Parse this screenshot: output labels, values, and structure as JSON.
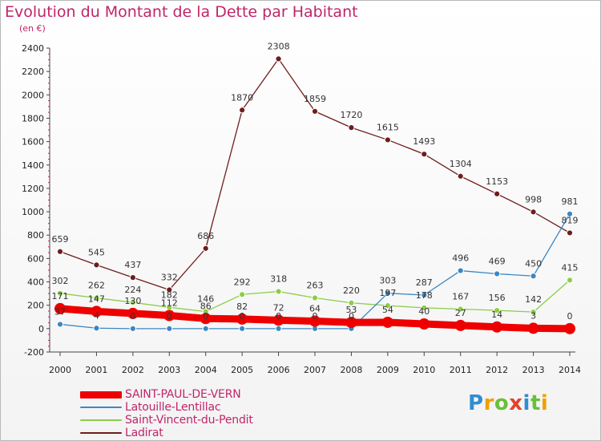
{
  "title": "Evolution du Montant de la Dette par Habitant",
  "subtitle": "(en €)",
  "logo": "Proxiti",
  "chart_data": {
    "type": "line",
    "title": "Evolution du Montant de la Dette par Habitant",
    "unit": "(en €)",
    "xlabel": "",
    "ylabel": "",
    "x": [
      "2000",
      "2001",
      "2002",
      "2003",
      "2004",
      "2005",
      "2006",
      "2007",
      "2008",
      "2009",
      "2010",
      "2011",
      "2012",
      "2013",
      "2014"
    ],
    "ylim": [
      -200,
      2400
    ],
    "yticks": [
      -200,
      0,
      200,
      400,
      600,
      800,
      1000,
      1200,
      1400,
      1600,
      1800,
      2000,
      2200,
      2400
    ],
    "grid": false,
    "legend_position": "bottom-left",
    "series": [
      {
        "name": "SAINT-PAUL-DE-VERN",
        "color": "#ee0000",
        "values": [
          171,
          147,
          130,
          112,
          86,
          82,
          72,
          64,
          53,
          54,
          40,
          27,
          14,
          3,
          0
        ]
      },
      {
        "name": "Latouille-Lentillac",
        "color": "#3a87c5",
        "values": [
          37,
          4,
          0,
          0,
          0,
          0,
          0,
          0,
          0,
          303,
          287,
          496,
          469,
          450,
          981
        ]
      },
      {
        "name": "Saint-Vincent-du-Pendit",
        "color": "#8ccd48",
        "values": [
          302,
          262,
          224,
          182,
          146,
          292,
          318,
          263,
          220,
          197,
          178,
          167,
          156,
          142,
          415
        ]
      },
      {
        "name": "Ladirat",
        "color": "#6e1d1d",
        "values": [
          659,
          545,
          437,
          332,
          686,
          1870,
          2308,
          1859,
          1720,
          1615,
          1493,
          1304,
          1153,
          998,
          819
        ]
      }
    ]
  }
}
